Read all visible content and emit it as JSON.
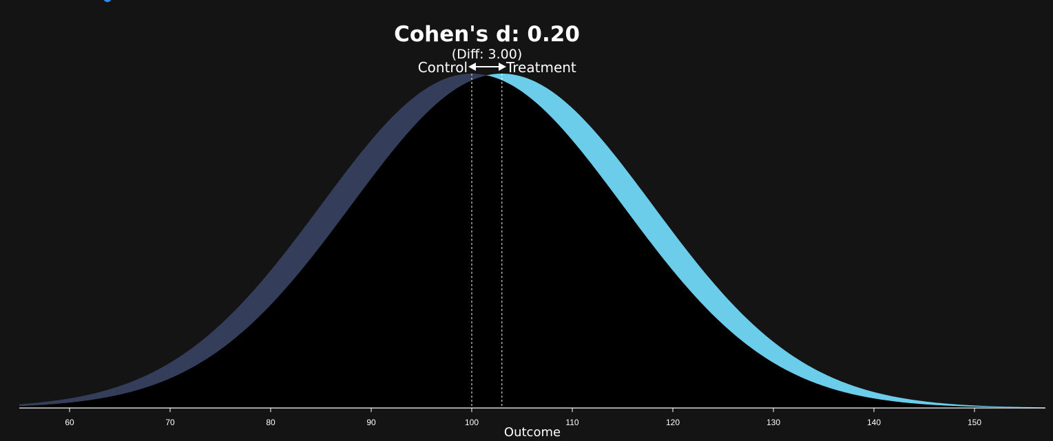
{
  "chart_data": {
    "type": "area",
    "title": "Cohen's d: 0.20",
    "subtitle": "(Diff: 3.00)",
    "xlabel": "Outcome",
    "ylabel": "",
    "xlim": [
      55,
      157
    ],
    "x_ticks": [
      60,
      70,
      80,
      90,
      100,
      110,
      120,
      130,
      140,
      150
    ],
    "series": [
      {
        "name": "Control",
        "mean": 100,
        "sd": 15,
        "color": "#343d59"
      },
      {
        "name": "Treatment",
        "mean": 103,
        "sd": 15,
        "color": "#6bcdea"
      }
    ],
    "overlap_color": "#000000",
    "difference": 3.0,
    "cohens_d": 0.2,
    "grid": false,
    "legend": "none",
    "mean_markers": "dotted vertical lines"
  },
  "colors": {
    "background": "#141414",
    "text": "#ffffff",
    "logo_accent": "#1e90ff"
  }
}
